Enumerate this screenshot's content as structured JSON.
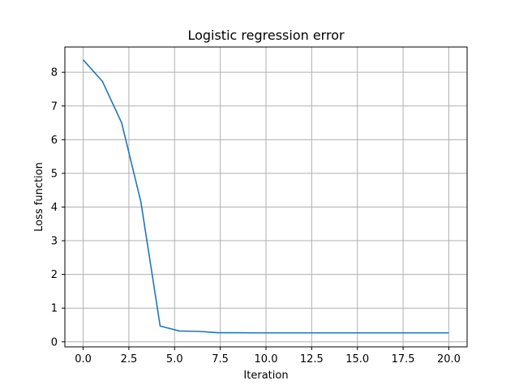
{
  "chart_data": {
    "type": "line",
    "title": "Logistic regression error",
    "xlabel": "Iteration",
    "ylabel": "Loss function",
    "xlim": [
      -1.0,
      21.0
    ],
    "ylim": [
      -0.15,
      8.75
    ],
    "xticks": [
      0.0,
      2.5,
      5.0,
      7.5,
      10.0,
      12.5,
      15.0,
      17.5,
      20.0
    ],
    "xtick_labels": [
      "0.0",
      "2.5",
      "5.0",
      "7.5",
      "10.0",
      "12.5",
      "15.0",
      "17.5",
      "20.0"
    ],
    "yticks": [
      0,
      1,
      2,
      3,
      4,
      5,
      6,
      7,
      8
    ],
    "ytick_labels": [
      "0",
      "1",
      "2",
      "3",
      "4",
      "5",
      "6",
      "7",
      "8"
    ],
    "grid": true,
    "series": [
      {
        "color": "#1f77b4",
        "x": [
          0.0,
          1.0526,
          2.1053,
          3.1579,
          4.2105,
          5.2632,
          6.3158,
          7.3684,
          8.4211,
          9.4737,
          10.5263,
          11.5789,
          12.6316,
          13.6842,
          14.7368,
          15.7895,
          16.8421,
          17.8947,
          18.9474,
          20.0
        ],
        "y": [
          8.37,
          7.73,
          6.5,
          4.15,
          0.47,
          0.32,
          0.31,
          0.27,
          0.27,
          0.265,
          0.265,
          0.265,
          0.265,
          0.265,
          0.265,
          0.265,
          0.265,
          0.265,
          0.265,
          0.265
        ]
      }
    ]
  }
}
